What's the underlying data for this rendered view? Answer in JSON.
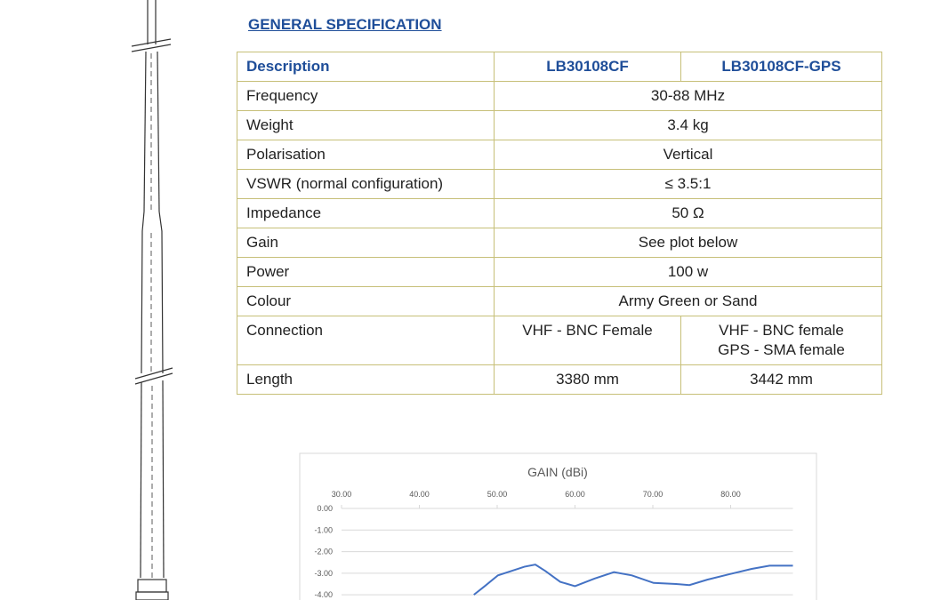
{
  "heading": "GENERAL SPECIFICATION",
  "table": {
    "header": [
      "Description",
      "LB30108CF",
      "LB30108CF-GPS"
    ],
    "rows": [
      [
        "Frequency",
        "30-88 MHz"
      ],
      [
        "Weight",
        "3.4 kg"
      ],
      [
        "Polarisation",
        "Vertical"
      ],
      [
        "VSWR (normal configuration)",
        "≤ 3.5:1"
      ],
      [
        "Impedance",
        "50 Ω"
      ],
      [
        "Gain",
        "See plot below"
      ],
      [
        "Power",
        "100 w"
      ],
      [
        "Colour",
        "Army Green or Sand"
      ],
      [
        "Connection",
        "VHF - BNC Female",
        [
          "VHF - BNC female",
          "GPS - SMA female"
        ]
      ],
      [
        "Length",
        "3380 mm",
        "3442 mm"
      ]
    ]
  },
  "chart_data": {
    "type": "line",
    "title": "GAIN (dBi)",
    "x": [
      47,
      48.4,
      50.1,
      51.8,
      53.5,
      54.9,
      56.2,
      58.1,
      60,
      62.5,
      65,
      67.3,
      70.1,
      73,
      74.7,
      77,
      79.8,
      82.7,
      85,
      86.7,
      88
    ],
    "series": [
      {
        "color": "#4472c4",
        "values": [
          -4.0,
          -3.6,
          -3.1,
          -2.9,
          -2.7,
          -2.6,
          -2.9,
          -3.4,
          -3.6,
          -3.25,
          -2.95,
          -3.1,
          -3.45,
          -3.5,
          -3.55,
          -3.3,
          -3.05,
          -2.8,
          -2.65,
          -2.65,
          -2.65
        ]
      }
    ],
    "xlim": [
      30,
      88
    ],
    "xticks": [
      {
        "value": 30,
        "label": "30.00"
      },
      {
        "value": 40,
        "label": "40.00"
      },
      {
        "value": 50,
        "label": "50.00"
      },
      {
        "value": 60,
        "label": "60.00"
      },
      {
        "value": 70,
        "label": "70.00"
      },
      {
        "value": 80,
        "label": "80.00"
      }
    ],
    "ylim": [
      -4.2,
      0
    ],
    "yticks": [
      {
        "value": 0,
        "label": "0.00"
      },
      {
        "value": -1,
        "label": "-1.00"
      },
      {
        "value": -2,
        "label": "-2.00"
      },
      {
        "value": -3,
        "label": "-3.00"
      },
      {
        "value": -4,
        "label": "-4.00"
      }
    ],
    "grid": true
  }
}
